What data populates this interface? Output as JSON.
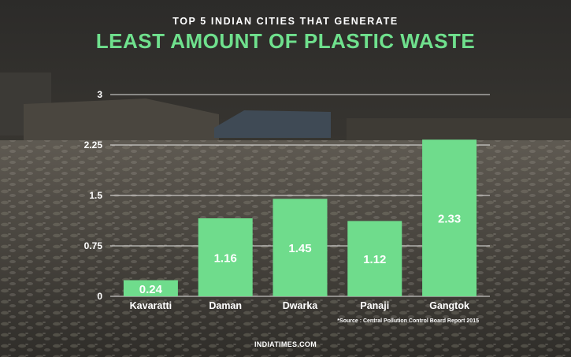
{
  "header": {
    "subtitle": "TOP 5 INDIAN CITIES THAT GENERATE",
    "title": "LEAST AMOUNT OF PLASTIC WASTE"
  },
  "footer": {
    "source": "*Source : Central  Pollution Control Board Report 2015",
    "site": "INDIATIMES.COM"
  },
  "colors": {
    "bar": "#6fdc8c",
    "title_accent": "#6fe08d",
    "text": "#ffffff",
    "grid": "#ffffff"
  },
  "chart_data": {
    "type": "bar",
    "categories": [
      "Kavaratti",
      "Daman",
      "Dwarka",
      "Panaji",
      "Gangtok"
    ],
    "values": [
      0.24,
      1.16,
      1.45,
      1.12,
      2.33
    ],
    "value_labels": [
      "0.24",
      "1.16",
      "1.45",
      "1.12",
      "2.33"
    ],
    "yticks": [
      "0",
      "0.75",
      "1.5",
      "2.25",
      "3"
    ],
    "ytick_values": [
      0,
      0.75,
      1.5,
      2.25,
      3
    ],
    "ylim": [
      0,
      3
    ],
    "grid": true,
    "legend": "none"
  }
}
